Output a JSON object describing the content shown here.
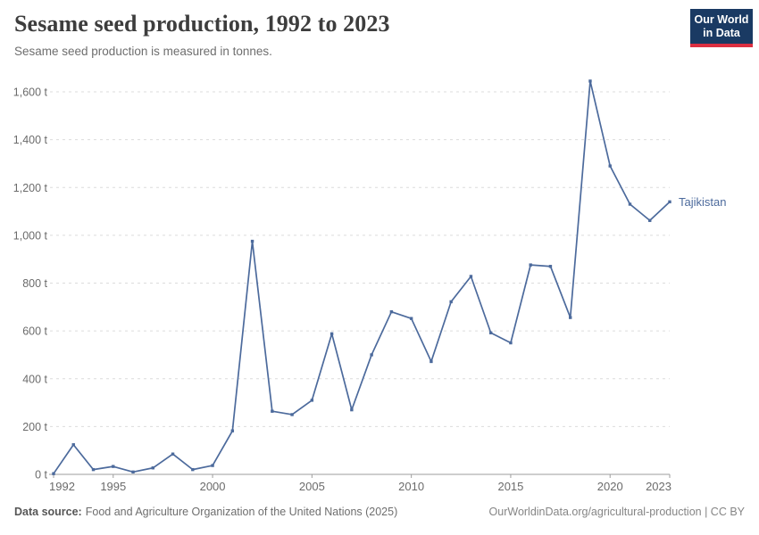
{
  "header": {
    "title": "Sesame seed production, 1992 to 2023",
    "subtitle": "Sesame seed production is measured in tonnes."
  },
  "logo": {
    "line1": "Our World",
    "line2": "in Data",
    "bg_color": "#1a3a63",
    "accent_color": "#dc2f41"
  },
  "chart_data": {
    "type": "line",
    "title": "Sesame seed production, 1992 to 2023",
    "unit": "tonnes",
    "xlabel": "",
    "ylabel": "",
    "xlim": [
      1992,
      2023
    ],
    "ylim": [
      0,
      1600
    ],
    "grid": true,
    "legend": "inline-label-right",
    "marker": "square",
    "x": [
      1992,
      1993,
      1994,
      1995,
      1996,
      1997,
      1998,
      1999,
      2000,
      2001,
      2002,
      2003,
      2004,
      2005,
      2006,
      2007,
      2008,
      2009,
      2010,
      2011,
      2012,
      2013,
      2014,
      2015,
      2016,
      2017,
      2018,
      2019,
      2020,
      2021,
      2022,
      2023
    ],
    "series": [
      {
        "name": "Tajikistan",
        "color": "#4c6a9c",
        "values": [
          3,
          124,
          20,
          33,
          10,
          27,
          85,
          20,
          37,
          182,
          975,
          264,
          250,
          310,
          588,
          270,
          500,
          680,
          652,
          472,
          722,
          828,
          592,
          550,
          876,
          870,
          656,
          1645,
          1290,
          1130,
          1062,
          1140
        ]
      }
    ],
    "yticks": {
      "values": [
        0,
        200,
        400,
        600,
        800,
        1000,
        1200,
        1400,
        1600
      ],
      "labels": [
        "0 t",
        "200 t",
        "400 t",
        "600 t",
        "800 t",
        "1,000 t",
        "1,200 t",
        "1,400 t",
        "1,600 t"
      ]
    },
    "xticks": {
      "values": [
        1992,
        1995,
        2000,
        2005,
        2010,
        2015,
        2020,
        2023
      ],
      "labels": [
        "1992",
        "1995",
        "2000",
        "2005",
        "2010",
        "2015",
        "2020",
        "2023"
      ]
    }
  },
  "colors": {
    "gridline": "#dcdcdc",
    "axis": "#9e9e9e",
    "tick_label": "#6b6b6b"
  },
  "footer": {
    "source_label": "Data source:",
    "source_text": "Food and Agriculture Organization of the United Nations (2025)",
    "credit_text": "OurWorldinData.org/agricultural-production | CC BY"
  }
}
